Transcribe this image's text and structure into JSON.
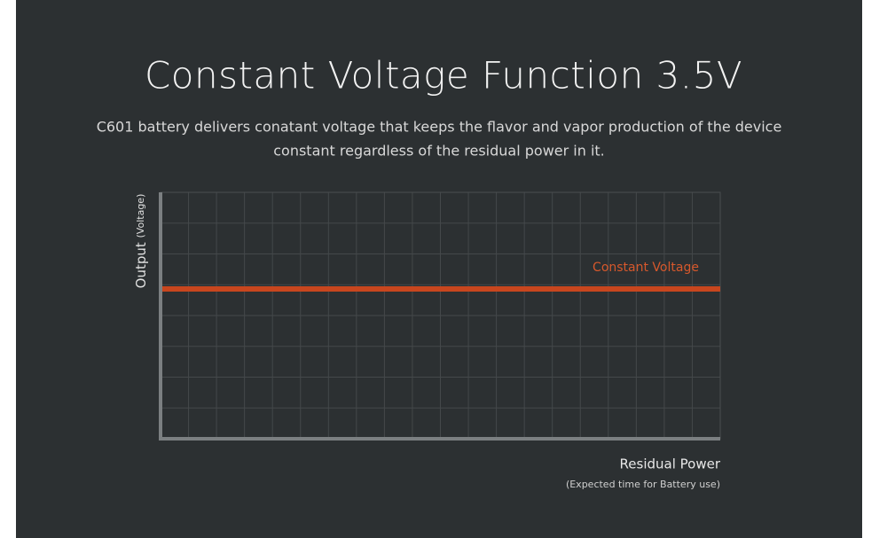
{
  "header": {
    "title": "Constant Voltage Function 3.5V",
    "subtitle_lines": [
      "C601 battery delivers conatant voltage that keeps the flavor and vapor production of the device",
      "constant regardless of the residual power in it."
    ]
  },
  "diagram": {
    "y_axis_label": "Output",
    "y_axis_unit": "(Voltage)",
    "line_label": "Constant Voltage",
    "x_axis_label": "Residual Power",
    "x_axis_note": "(Expected time for Battery use)"
  }
}
